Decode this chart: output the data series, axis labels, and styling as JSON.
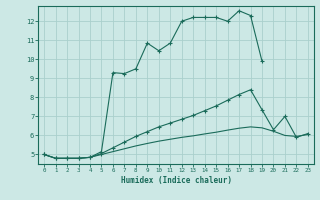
{
  "xlabel": "Humidex (Indice chaleur)",
  "background_color": "#cce8e5",
  "grid_color": "#aad0cc",
  "line_color": "#1a6b5a",
  "xlim": [
    -0.5,
    23.5
  ],
  "ylim": [
    4.5,
    12.8
  ],
  "xtick_vals": [
    0,
    1,
    2,
    3,
    4,
    5,
    6,
    7,
    8,
    9,
    10,
    11,
    12,
    13,
    14,
    15,
    16,
    17,
    18,
    19,
    20,
    21,
    22,
    23
  ],
  "xtick_labels": [
    "0",
    "1",
    "2",
    "3",
    "4",
    "5",
    "6",
    "7",
    "8",
    "9",
    "10",
    "11",
    "12",
    "13",
    "14",
    "15",
    "16",
    "17",
    "18",
    "19",
    "20",
    "21",
    "22",
    "23"
  ],
  "ytick_vals": [
    5,
    6,
    7,
    8,
    9,
    10,
    11,
    12
  ],
  "ytick_labels": [
    "5",
    "6",
    "7",
    "8",
    "9",
    "10",
    "11",
    "12"
  ],
  "series": [
    {
      "x": [
        0,
        1,
        2,
        3,
        4,
        5,
        6,
        7,
        8,
        9,
        10,
        11,
        12,
        13,
        14,
        15,
        16,
        17,
        18,
        19
      ],
      "y": [
        5.0,
        4.8,
        4.8,
        4.8,
        4.85,
        5.15,
        9.3,
        9.25,
        9.5,
        10.85,
        10.45,
        10.85,
        12.0,
        12.2,
        12.2,
        12.2,
        12.0,
        12.55,
        12.3,
        9.9
      ],
      "marker": true
    },
    {
      "x": [
        0,
        1,
        2,
        3,
        4,
        5,
        6,
        7,
        8,
        9,
        10,
        11,
        12,
        13,
        14,
        15,
        16,
        17,
        18,
        19,
        20,
        21,
        22,
        23
      ],
      "y": [
        5.0,
        4.8,
        4.8,
        4.8,
        4.85,
        5.05,
        5.35,
        5.65,
        5.95,
        6.2,
        6.45,
        6.65,
        6.85,
        7.05,
        7.3,
        7.55,
        7.85,
        8.15,
        8.4,
        7.35,
        6.3,
        7.0,
        5.9,
        6.1
      ],
      "marker": true
    },
    {
      "x": [
        0,
        1,
        2,
        3,
        4,
        5,
        6,
        7,
        8,
        9,
        10,
        11,
        12,
        13,
        14,
        15,
        16,
        17,
        18,
        19,
        20,
        21,
        22,
        23
      ],
      "y": [
        5.0,
        4.8,
        4.8,
        4.8,
        4.85,
        5.0,
        5.15,
        5.3,
        5.45,
        5.58,
        5.7,
        5.8,
        5.9,
        5.98,
        6.08,
        6.17,
        6.28,
        6.38,
        6.45,
        6.4,
        6.22,
        6.0,
        5.95,
        6.05
      ],
      "marker": false
    }
  ]
}
